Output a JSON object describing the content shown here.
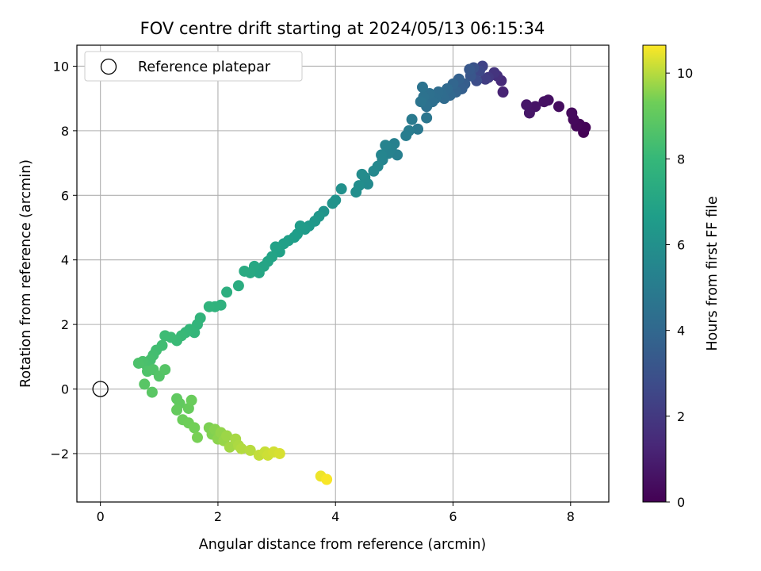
{
  "chart_data": {
    "type": "scatter",
    "title": "FOV centre drift starting at 2024/05/13 06:15:34",
    "xlabel": "Angular distance from reference (arcmin)",
    "ylabel": "Rotation from reference (arcmin)",
    "xlim": [
      -0.4,
      8.65
    ],
    "ylim": [
      -3.5,
      10.65
    ],
    "xticks": [
      0,
      2,
      4,
      6,
      8
    ],
    "yticks": [
      -2,
      0,
      2,
      4,
      6,
      8,
      10
    ],
    "grid": true,
    "legend": {
      "location": "top-left",
      "entries": [
        "Reference platepar"
      ]
    },
    "reference_point": {
      "name": "Reference platepar",
      "x": 0,
      "y": 0
    },
    "colorbar": {
      "label": "Hours from first FF file",
      "colormap": "viridis",
      "min": 0,
      "max": 10.65,
      "ticks": [
        0,
        2,
        4,
        6,
        8,
        10
      ]
    },
    "series": [
      {
        "points": [
          {
            "x": 8.22,
            "y": 7.95,
            "h": 0.05
          },
          {
            "x": 8.25,
            "y": 8.1,
            "h": 0.1
          },
          {
            "x": 8.15,
            "y": 8.2,
            "h": 0.15
          },
          {
            "x": 8.1,
            "y": 8.15,
            "h": 0.2
          },
          {
            "x": 8.05,
            "y": 8.35,
            "h": 0.25
          },
          {
            "x": 8.02,
            "y": 8.55,
            "h": 0.3
          },
          {
            "x": 7.8,
            "y": 8.75,
            "h": 0.4
          },
          {
            "x": 7.62,
            "y": 8.95,
            "h": 0.5
          },
          {
            "x": 7.55,
            "y": 8.9,
            "h": 0.55
          },
          {
            "x": 7.4,
            "y": 8.75,
            "h": 0.65
          },
          {
            "x": 7.3,
            "y": 8.55,
            "h": 0.7
          },
          {
            "x": 7.25,
            "y": 8.8,
            "h": 0.75
          },
          {
            "x": 6.85,
            "y": 9.2,
            "h": 1.2
          },
          {
            "x": 6.82,
            "y": 9.55,
            "h": 1.4
          },
          {
            "x": 6.75,
            "y": 9.7,
            "h": 1.6
          },
          {
            "x": 6.7,
            "y": 9.8,
            "h": 1.8
          },
          {
            "x": 6.6,
            "y": 9.65,
            "h": 2.0
          },
          {
            "x": 6.55,
            "y": 9.6,
            "h": 2.2
          },
          {
            "x": 6.5,
            "y": 10.0,
            "h": 2.4
          },
          {
            "x": 6.45,
            "y": 9.85,
            "h": 2.6
          },
          {
            "x": 6.4,
            "y": 9.55,
            "h": 2.8
          },
          {
            "x": 6.35,
            "y": 9.95,
            "h": 3.0
          },
          {
            "x": 6.3,
            "y": 9.7,
            "h": 3.2
          },
          {
            "x": 6.28,
            "y": 9.9,
            "h": 3.3
          },
          {
            "x": 6.2,
            "y": 9.45,
            "h": 3.5
          },
          {
            "x": 6.15,
            "y": 9.3,
            "h": 3.6
          },
          {
            "x": 6.1,
            "y": 9.6,
            "h": 3.7
          },
          {
            "x": 6.05,
            "y": 9.2,
            "h": 3.8
          },
          {
            "x": 6.0,
            "y": 9.45,
            "h": 3.9
          },
          {
            "x": 5.95,
            "y": 9.1,
            "h": 4.0
          },
          {
            "x": 5.9,
            "y": 9.3,
            "h": 4.1
          },
          {
            "x": 5.85,
            "y": 9.0,
            "h": 4.15
          },
          {
            "x": 5.8,
            "y": 9.15,
            "h": 4.2
          },
          {
            "x": 5.75,
            "y": 9.2,
            "h": 4.25
          },
          {
            "x": 5.7,
            "y": 9.0,
            "h": 4.3
          },
          {
            "x": 5.65,
            "y": 8.9,
            "h": 4.35
          },
          {
            "x": 5.6,
            "y": 9.15,
            "h": 4.4
          },
          {
            "x": 5.55,
            "y": 8.75,
            "h": 4.45
          },
          {
            "x": 5.5,
            "y": 9.05,
            "h": 4.5
          },
          {
            "x": 5.48,
            "y": 9.35,
            "h": 4.55
          },
          {
            "x": 5.45,
            "y": 8.9,
            "h": 4.6
          },
          {
            "x": 5.55,
            "y": 8.4,
            "h": 4.7
          },
          {
            "x": 5.4,
            "y": 8.05,
            "h": 4.8
          },
          {
            "x": 5.3,
            "y": 8.35,
            "h": 4.9
          },
          {
            "x": 5.25,
            "y": 8.0,
            "h": 5.0
          },
          {
            "x": 5.2,
            "y": 7.85,
            "h": 5.05
          },
          {
            "x": 5.05,
            "y": 7.25,
            "h": 5.15
          },
          {
            "x": 5.0,
            "y": 7.6,
            "h": 5.2
          },
          {
            "x": 4.95,
            "y": 7.45,
            "h": 5.25
          },
          {
            "x": 4.9,
            "y": 7.3,
            "h": 5.3
          },
          {
            "x": 4.85,
            "y": 7.55,
            "h": 5.35
          },
          {
            "x": 4.8,
            "y": 7.1,
            "h": 5.4
          },
          {
            "x": 4.78,
            "y": 7.25,
            "h": 5.45
          },
          {
            "x": 4.72,
            "y": 6.9,
            "h": 5.55
          },
          {
            "x": 4.65,
            "y": 6.75,
            "h": 5.6
          },
          {
            "x": 4.55,
            "y": 6.35,
            "h": 5.7
          },
          {
            "x": 4.5,
            "y": 6.55,
            "h": 5.75
          },
          {
            "x": 4.45,
            "y": 6.65,
            "h": 5.8
          },
          {
            "x": 4.4,
            "y": 6.3,
            "h": 5.85
          },
          {
            "x": 4.35,
            "y": 6.1,
            "h": 5.9
          },
          {
            "x": 4.1,
            "y": 6.2,
            "h": 6.0
          },
          {
            "x": 4.0,
            "y": 5.85,
            "h": 6.1
          },
          {
            "x": 3.95,
            "y": 5.75,
            "h": 6.15
          },
          {
            "x": 3.8,
            "y": 5.5,
            "h": 6.2
          },
          {
            "x": 3.72,
            "y": 5.35,
            "h": 6.3
          },
          {
            "x": 3.65,
            "y": 5.2,
            "h": 6.35
          },
          {
            "x": 3.55,
            "y": 5.05,
            "h": 6.4
          },
          {
            "x": 3.48,
            "y": 4.95,
            "h": 6.5
          },
          {
            "x": 3.4,
            "y": 5.05,
            "h": 6.55
          },
          {
            "x": 3.35,
            "y": 4.8,
            "h": 6.6
          },
          {
            "x": 3.3,
            "y": 4.7,
            "h": 6.65
          },
          {
            "x": 3.2,
            "y": 4.6,
            "h": 6.7
          },
          {
            "x": 3.12,
            "y": 4.5,
            "h": 6.75
          },
          {
            "x": 3.05,
            "y": 4.25,
            "h": 6.8
          },
          {
            "x": 2.98,
            "y": 4.4,
            "h": 6.85
          },
          {
            "x": 2.92,
            "y": 4.1,
            "h": 6.9
          },
          {
            "x": 2.85,
            "y": 3.95,
            "h": 6.95
          },
          {
            "x": 2.78,
            "y": 3.8,
            "h": 7.0
          },
          {
            "x": 2.7,
            "y": 3.6,
            "h": 7.1
          },
          {
            "x": 2.62,
            "y": 3.8,
            "h": 7.15
          },
          {
            "x": 2.55,
            "y": 3.6,
            "h": 7.2
          },
          {
            "x": 2.45,
            "y": 3.65,
            "h": 7.3
          },
          {
            "x": 2.35,
            "y": 3.2,
            "h": 7.4
          },
          {
            "x": 2.15,
            "y": 3.0,
            "h": 7.5
          },
          {
            "x": 2.05,
            "y": 2.6,
            "h": 7.6
          },
          {
            "x": 1.95,
            "y": 2.55,
            "h": 7.7
          },
          {
            "x": 1.85,
            "y": 2.55,
            "h": 7.75
          },
          {
            "x": 1.7,
            "y": 2.2,
            "h": 7.8
          },
          {
            "x": 1.65,
            "y": 2.0,
            "h": 7.85
          },
          {
            "x": 1.6,
            "y": 1.75,
            "h": 7.9
          },
          {
            "x": 1.52,
            "y": 1.85,
            "h": 7.95
          },
          {
            "x": 1.45,
            "y": 1.75,
            "h": 8.0
          },
          {
            "x": 1.38,
            "y": 1.65,
            "h": 8.05
          },
          {
            "x": 1.3,
            "y": 1.5,
            "h": 8.1
          },
          {
            "x": 1.2,
            "y": 1.6,
            "h": 8.15
          },
          {
            "x": 1.1,
            "y": 1.65,
            "h": 8.2
          },
          {
            "x": 1.05,
            "y": 1.35,
            "h": 8.25
          },
          {
            "x": 0.95,
            "y": 1.2,
            "h": 8.3
          },
          {
            "x": 0.9,
            "y": 1.05,
            "h": 8.35
          },
          {
            "x": 0.85,
            "y": 0.9,
            "h": 8.4
          },
          {
            "x": 0.78,
            "y": 0.75,
            "h": 8.45
          },
          {
            "x": 0.72,
            "y": 0.85,
            "h": 8.5
          },
          {
            "x": 0.65,
            "y": 0.8,
            "h": 8.55
          },
          {
            "x": 0.8,
            "y": 0.55,
            "h": 8.6
          },
          {
            "x": 0.9,
            "y": 0.6,
            "h": 8.65
          },
          {
            "x": 1.0,
            "y": 0.4,
            "h": 8.7
          },
          {
            "x": 1.1,
            "y": 0.6,
            "h": 8.75
          },
          {
            "x": 0.75,
            "y": 0.15,
            "h": 8.8
          },
          {
            "x": 0.88,
            "y": -0.1,
            "h": 8.85
          },
          {
            "x": 1.3,
            "y": -0.3,
            "h": 9.0
          },
          {
            "x": 1.35,
            "y": -0.45,
            "h": 9.05
          },
          {
            "x": 1.3,
            "y": -0.65,
            "h": 9.1
          },
          {
            "x": 1.5,
            "y": -0.6,
            "h": 9.15
          },
          {
            "x": 1.55,
            "y": -0.35,
            "h": 9.2
          },
          {
            "x": 1.4,
            "y": -0.95,
            "h": 9.25
          },
          {
            "x": 1.5,
            "y": -1.05,
            "h": 9.3
          },
          {
            "x": 1.6,
            "y": -1.2,
            "h": 9.35
          },
          {
            "x": 1.65,
            "y": -1.5,
            "h": 9.4
          },
          {
            "x": 1.85,
            "y": -1.2,
            "h": 9.45
          },
          {
            "x": 1.9,
            "y": -1.4,
            "h": 9.5
          },
          {
            "x": 1.95,
            "y": -1.25,
            "h": 9.55
          },
          {
            "x": 2.0,
            "y": -1.55,
            "h": 9.6
          },
          {
            "x": 2.05,
            "y": -1.35,
            "h": 9.65
          },
          {
            "x": 2.1,
            "y": -1.6,
            "h": 9.7
          },
          {
            "x": 2.15,
            "y": -1.45,
            "h": 9.75
          },
          {
            "x": 2.2,
            "y": -1.8,
            "h": 9.8
          },
          {
            "x": 2.3,
            "y": -1.55,
            "h": 9.85
          },
          {
            "x": 2.35,
            "y": -1.75,
            "h": 9.9
          },
          {
            "x": 2.4,
            "y": -1.85,
            "h": 9.95
          },
          {
            "x": 2.55,
            "y": -1.9,
            "h": 10.0
          },
          {
            "x": 2.7,
            "y": -2.05,
            "h": 10.1
          },
          {
            "x": 2.8,
            "y": -1.95,
            "h": 10.15
          },
          {
            "x": 2.85,
            "y": -2.05,
            "h": 10.2
          },
          {
            "x": 2.95,
            "y": -1.95,
            "h": 10.25
          },
          {
            "x": 3.05,
            "y": -2.0,
            "h": 10.3
          },
          {
            "x": 3.75,
            "y": -2.7,
            "h": 10.5
          },
          {
            "x": 3.85,
            "y": -2.8,
            "h": 10.6
          }
        ]
      }
    ]
  }
}
